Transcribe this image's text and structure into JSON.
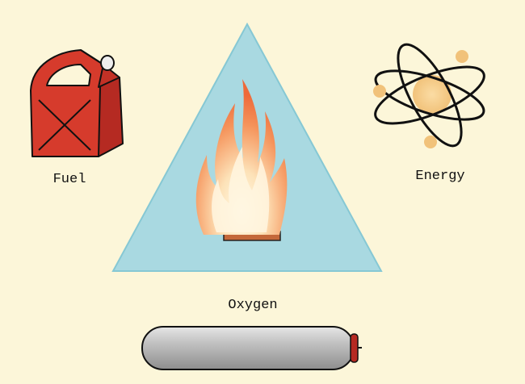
{
  "nodes": [
    {
      "label": "Fuel"
    },
    {
      "label": "Energy"
    },
    {
      "label": "Oxygen"
    }
  ]
}
